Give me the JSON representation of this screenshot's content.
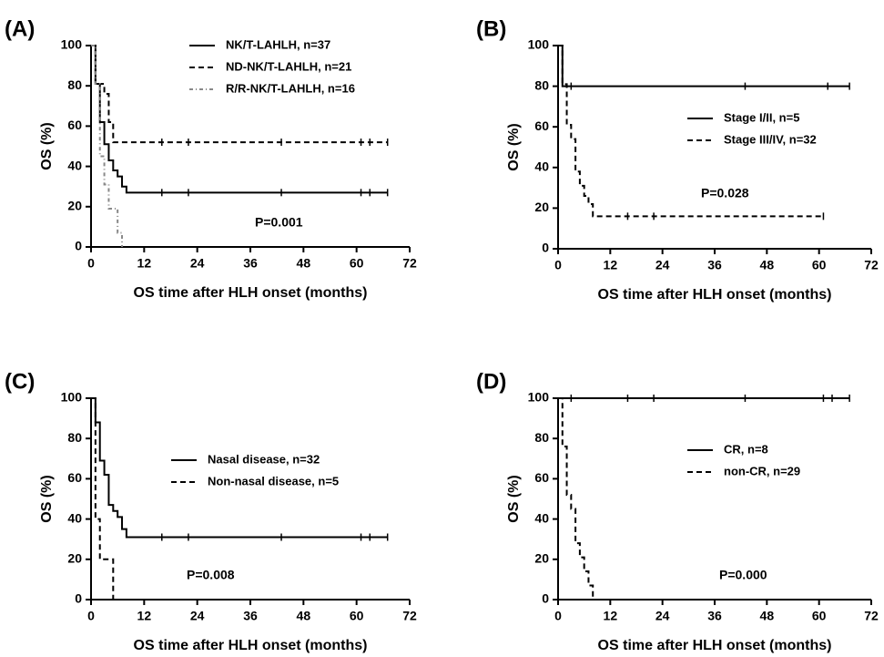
{
  "chart_data": [
    {
      "type": "line",
      "panel_label": "(A)",
      "xlabel": "OS time after HLH onset (months)",
      "ylabel": "OS (%)",
      "xlim": [
        0,
        72
      ],
      "ylim": [
        0,
        100
      ],
      "xticks": [
        0,
        12,
        24,
        36,
        48,
        60,
        72
      ],
      "yticks": [
        0,
        20,
        40,
        60,
        80,
        100
      ],
      "legend_position": "top-right",
      "annotation": "P=0.001",
      "series": [
        {
          "name": "NK/T-LAHLH, n=37",
          "style": "solid",
          "color": "#000000",
          "steps": [
            [
              0,
              100
            ],
            [
              1,
              81
            ],
            [
              2,
              62
            ],
            [
              3,
              51
            ],
            [
              4,
              43
            ],
            [
              5,
              38
            ],
            [
              6,
              35
            ],
            [
              7,
              30
            ],
            [
              8,
              27
            ],
            [
              67,
              27
            ]
          ],
          "censor": [
            16,
            22,
            43,
            61,
            63,
            67
          ]
        },
        {
          "name": "ND-NK/T-LAHLH, n=21",
          "style": "dashed",
          "color": "#000000",
          "steps": [
            [
              0,
              100
            ],
            [
              1,
              81
            ],
            [
              3,
              76
            ],
            [
              4,
              62
            ],
            [
              5,
              52
            ],
            [
              67,
              52
            ]
          ],
          "censor": [
            16,
            22,
            43,
            61,
            63,
            67
          ]
        },
        {
          "name": "R/R-NK/T-LAHLH, n=16",
          "style": "dashdot",
          "color": "#888888",
          "steps": [
            [
              0,
              100
            ],
            [
              1,
              81
            ],
            [
              2,
              45
            ],
            [
              3,
              31
            ],
            [
              4,
              19
            ],
            [
              6,
              7
            ],
            [
              7,
              0
            ]
          ],
          "censor": []
        }
      ]
    },
    {
      "type": "line",
      "panel_label": "(B)",
      "xlabel": "OS time after HLH onset (months)",
      "ylabel": "OS (%)",
      "xlim": [
        0,
        72
      ],
      "ylim": [
        0,
        100
      ],
      "xticks": [
        0,
        12,
        24,
        36,
        48,
        60,
        72
      ],
      "yticks": [
        0,
        20,
        40,
        60,
        80,
        100
      ],
      "legend_position": "center-right",
      "annotation": "P=0.028",
      "series": [
        {
          "name": "Stage I/II, n=5",
          "style": "solid",
          "color": "#000000",
          "steps": [
            [
              0,
              100
            ],
            [
              1,
              80
            ],
            [
              67,
              80
            ]
          ],
          "censor": [
            3,
            43,
            62,
            67
          ]
        },
        {
          "name": "Stage III/IV, n=32",
          "style": "dashed",
          "color": "#000000",
          "steps": [
            [
              0,
              100
            ],
            [
              1,
              81
            ],
            [
              2,
              61
            ],
            [
              3,
              54
            ],
            [
              4,
              38
            ],
            [
              5,
              31
            ],
            [
              6,
              26
            ],
            [
              7,
              22
            ],
            [
              8,
              16
            ],
            [
              61,
              16
            ]
          ],
          "censor": [
            16,
            22,
            61
          ]
        }
      ]
    },
    {
      "type": "line",
      "panel_label": "(C)",
      "xlabel": "OS time after HLH onset (months)",
      "ylabel": "OS (%)",
      "xlim": [
        0,
        72
      ],
      "ylim": [
        0,
        100
      ],
      "xticks": [
        0,
        12,
        24,
        36,
        48,
        60,
        72
      ],
      "yticks": [
        0,
        20,
        40,
        60,
        80,
        100
      ],
      "legend_position": "center-right",
      "annotation": "P=0.008",
      "series": [
        {
          "name": "Nasal disease, n=32",
          "style": "solid",
          "color": "#000000",
          "steps": [
            [
              0,
              100
            ],
            [
              1,
              88
            ],
            [
              2,
              69
            ],
            [
              3,
              62
            ],
            [
              4,
              47
            ],
            [
              5,
              44
            ],
            [
              6,
              41
            ],
            [
              7,
              35
            ],
            [
              8,
              31
            ],
            [
              67,
              31
            ]
          ],
          "censor": [
            16,
            22,
            43,
            61,
            63,
            67
          ]
        },
        {
          "name": "Non-nasal disease, n=5",
          "style": "dashed",
          "color": "#000000",
          "steps": [
            [
              0,
              100
            ],
            [
              1,
              40
            ],
            [
              2,
              20
            ],
            [
              5,
              0
            ]
          ],
          "censor": []
        }
      ]
    },
    {
      "type": "line",
      "panel_label": "(D)",
      "xlabel": "OS time after HLH onset (months)",
      "ylabel": "OS (%)",
      "xlim": [
        0,
        72
      ],
      "ylim": [
        0,
        100
      ],
      "xticks": [
        0,
        12,
        24,
        36,
        48,
        60,
        72
      ],
      "yticks": [
        0,
        20,
        40,
        60,
        80,
        100
      ],
      "legend_position": "center-right",
      "annotation": "P=0.000",
      "series": [
        {
          "name": "CR, n=8",
          "style": "solid",
          "color": "#000000",
          "steps": [
            [
              0,
              100
            ],
            [
              67,
              100
            ]
          ],
          "censor": [
            3,
            16,
            22,
            43,
            61,
            63,
            67
          ]
        },
        {
          "name": "non-CR, n=29",
          "style": "dashed",
          "color": "#000000",
          "steps": [
            [
              0,
              100
            ],
            [
              1,
              76
            ],
            [
              2,
              52
            ],
            [
              3,
              45
            ],
            [
              4,
              28
            ],
            [
              5,
              21
            ],
            [
              6,
              14
            ],
            [
              7,
              7
            ],
            [
              8,
              0
            ]
          ],
          "censor": []
        }
      ]
    }
  ]
}
